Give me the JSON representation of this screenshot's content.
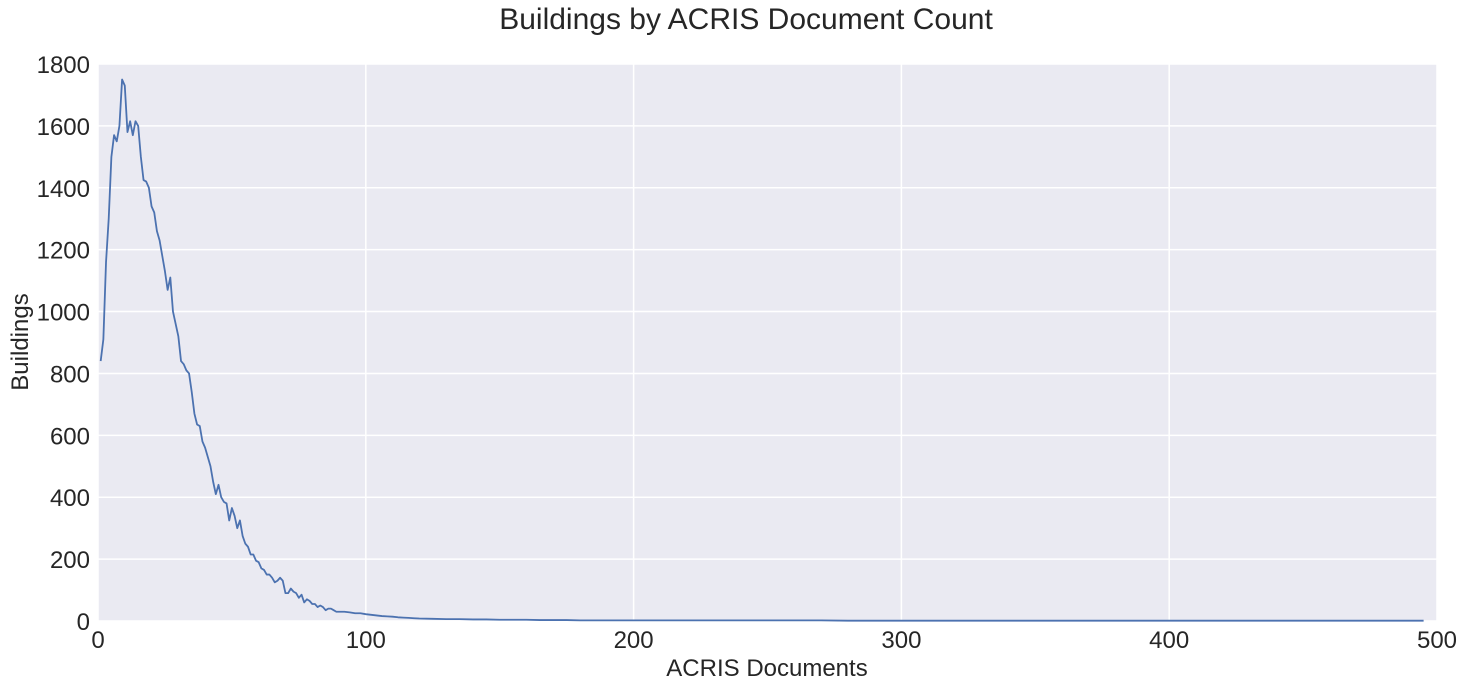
{
  "chart_data": {
    "type": "line",
    "title": "Buildings by ACRIS Document Count",
    "xlabel": "ACRIS Documents",
    "ylabel": "Buildings",
    "xlim": [
      0,
      500
    ],
    "ylim": [
      0,
      1800
    ],
    "xticks": [
      0,
      100,
      200,
      300,
      400,
      500
    ],
    "yticks": [
      0,
      200,
      400,
      600,
      800,
      1000,
      1200,
      1400,
      1600,
      1800
    ],
    "grid": true,
    "legend": "none",
    "colors": {
      "series": "#4c72b0",
      "plot_background": "#eaeaf2",
      "grid": "#ffffff"
    },
    "series": [
      {
        "x": [
          1,
          2,
          3,
          4,
          5,
          6,
          7,
          8,
          9,
          10,
          11,
          12,
          13,
          14,
          15,
          16,
          17,
          18,
          19,
          20,
          21,
          22,
          23,
          24,
          25,
          26,
          27,
          28,
          29,
          30,
          31,
          32,
          33,
          34,
          35,
          36,
          37,
          38,
          39,
          40,
          41,
          42,
          43,
          44,
          45,
          46,
          47,
          48,
          49,
          50,
          51,
          52,
          53,
          54,
          55,
          56,
          57,
          58,
          59,
          60,
          61,
          62,
          63,
          64,
          65,
          66,
          67,
          68,
          69,
          70,
          71,
          72,
          73,
          74,
          75,
          76,
          77,
          78,
          79,
          80,
          81,
          82,
          83,
          84,
          85,
          86,
          87,
          88,
          89,
          90,
          92,
          94,
          96,
          98,
          100,
          102,
          104,
          106,
          108,
          110,
          112,
          114,
          116,
          118,
          120,
          125,
          130,
          135,
          140,
          145,
          150,
          155,
          160,
          165,
          170,
          175,
          180,
          190,
          200,
          210,
          220,
          230,
          240,
          250,
          260,
          270,
          280,
          290,
          300,
          310,
          320,
          330,
          340,
          350,
          360,
          380,
          400,
          420,
          440,
          460,
          480,
          495
        ],
        "values": [
          840,
          910,
          1160,
          1300,
          1500,
          1570,
          1550,
          1600,
          1750,
          1730,
          1580,
          1615,
          1570,
          1615,
          1600,
          1500,
          1425,
          1420,
          1400,
          1340,
          1320,
          1260,
          1230,
          1180,
          1130,
          1070,
          1110,
          1000,
          960,
          920,
          840,
          830,
          810,
          800,
          740,
          670,
          635,
          630,
          580,
          560,
          530,
          500,
          450,
          410,
          440,
          400,
          385,
          380,
          325,
          365,
          340,
          300,
          325,
          275,
          250,
          240,
          215,
          215,
          195,
          190,
          170,
          165,
          150,
          150,
          140,
          125,
          130,
          140,
          130,
          90,
          90,
          105,
          95,
          90,
          75,
          85,
          60,
          70,
          65,
          55,
          55,
          45,
          50,
          45,
          35,
          40,
          40,
          35,
          30,
          30,
          30,
          28,
          25,
          25,
          22,
          20,
          18,
          16,
          15,
          14,
          12,
          11,
          10,
          9,
          8,
          7,
          6,
          6,
          5,
          5,
          4,
          4,
          4,
          3,
          3,
          3,
          2,
          2,
          2,
          2,
          2,
          2,
          2,
          2,
          2,
          2,
          1,
          1,
          1,
          1,
          1,
          1,
          1,
          1,
          1,
          1,
          1,
          1,
          1,
          1,
          1,
          1
        ]
      }
    ]
  }
}
